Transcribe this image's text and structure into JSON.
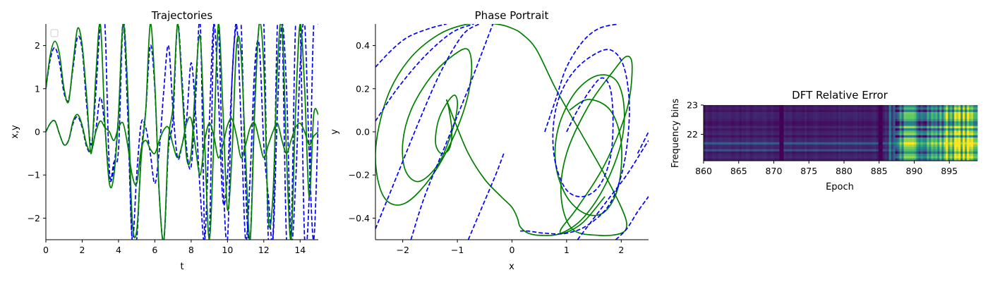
{
  "chart_data": [
    {
      "type": "line",
      "title": "Trajectories",
      "xlabel": "t",
      "ylabel": "x,y",
      "xlim": [
        0,
        15
      ],
      "ylim": [
        -2.5,
        2.5
      ],
      "xticks": [
        "0",
        "2",
        "4",
        "6",
        "8",
        "10",
        "12",
        "14"
      ],
      "yticks": [
        "−2",
        "−1",
        "0",
        "1",
        "2"
      ],
      "grid": false,
      "legend": "top-left (empty)",
      "series": [
        {
          "style": "dashed",
          "color": "#0000ff",
          "x0": 0,
          "t": [
            0,
            0.25,
            0.5,
            0.75,
            1.0,
            1.25,
            1.5,
            1.75,
            2.0,
            2.25,
            2.5,
            2.75,
            3.0,
            3.25,
            3.5,
            3.75,
            4.0,
            4.25,
            4.5,
            4.75,
            5.0,
            5.25,
            5.5,
            5.75,
            6.0,
            6.25,
            6.5,
            6.75,
            7.0,
            7.25,
            7.5,
            7.75,
            8.0,
            8.25,
            8.5,
            8.75,
            9.0,
            9.25,
            9.5,
            9.75,
            10.0,
            10.25,
            10.5,
            10.75,
            11.0,
            11.25,
            11.5,
            11.75,
            12.0,
            12.25,
            12.5,
            12.75,
            13.0,
            13.25,
            13.5,
            13.75,
            14.0,
            14.25,
            14.5,
            14.75,
            15.0
          ],
          "values": [
            1.0,
            1.7,
            1.95,
            1.6,
            0.9,
            0.75,
            1.5,
            2.2,
            1.9,
            0.6,
            -0.3,
            0.9,
            2.5,
            2.5,
            -0.9,
            -0.7,
            -0.4,
            2.5,
            1.0,
            -2.5,
            -2.5,
            -0.5,
            0.5,
            2.0,
            1.0,
            -1.5,
            -2.5,
            -0.4,
            0.3,
            2.5,
            1.2,
            -0.4,
            -0.8,
            0.8,
            2.5,
            -2.5,
            -2.5,
            2.5,
            2.5,
            -1.0,
            -2.5,
            1.2,
            2.5,
            2.5,
            -1.3,
            -2.5,
            0.8,
            2.5,
            2.5,
            -2.5,
            -2.5,
            2.5,
            2.5,
            -2.5,
            -2.5,
            2.5,
            2.5,
            -2.5,
            -1.5,
            2.5,
            2.5
          ]
        },
        {
          "style": "dashed",
          "color": "#0000ff",
          "x0": 0,
          "t": [
            0,
            0.25,
            0.5,
            0.75,
            1.0,
            1.25,
            1.5,
            1.75,
            2.0,
            2.25,
            2.5,
            2.75,
            3.0,
            3.25,
            3.5,
            3.75,
            4.0,
            4.25,
            4.5,
            4.75,
            5.0,
            5.25,
            5.5,
            5.75,
            6.0,
            6.25,
            6.5,
            6.75,
            7.0,
            7.25,
            7.5,
            7.75,
            8.0,
            8.25,
            8.5,
            8.75,
            9.0,
            9.25,
            9.5,
            9.75,
            10.0,
            10.25,
            10.5,
            10.75,
            11.0,
            11.25,
            11.5,
            11.75,
            12.0,
            12.25,
            12.5,
            12.75,
            13.0,
            13.25,
            13.5,
            13.75,
            14.0,
            14.25,
            14.5,
            14.75,
            15.0
          ],
          "values": [
            0.0,
            0.2,
            0.25,
            -0.05,
            -0.3,
            -0.2,
            0.2,
            0.35,
            0.1,
            -0.35,
            -0.45,
            0.05,
            0.8,
            0.1,
            -1.1,
            -0.8,
            0.4,
            2.5,
            0.5,
            -2.5,
            -1.0,
            0.2,
            0.1,
            -0.5,
            -1.2,
            -0.4,
            1.0,
            2.0,
            0.5,
            -0.6,
            -0.3,
            0.3,
            1.6,
            0.4,
            -1.4,
            -2.5,
            0.2,
            2.5,
            0.8,
            -1.6,
            -1.0,
            1.2,
            2.5,
            0.2,
            -2.5,
            -1.0,
            1.5,
            2.0,
            -0.3,
            -1.5,
            -2.5,
            0.5,
            2.5,
            1.0,
            -2.5,
            -1.2,
            1.5,
            2.5,
            -0.5,
            -2.5,
            0.3
          ]
        },
        {
          "style": "solid",
          "color": "#008000",
          "x0": 0,
          "t": [
            0,
            0.25,
            0.5,
            0.75,
            1.0,
            1.25,
            1.5,
            1.75,
            2.0,
            2.25,
            2.5,
            2.75,
            3.0,
            3.25,
            3.5,
            3.75,
            4.0,
            4.25,
            4.5,
            4.75,
            5.0,
            5.25,
            5.5,
            5.75,
            6.0,
            6.25,
            6.5,
            6.75,
            7.0,
            7.25,
            7.5,
            7.75,
            8.0,
            8.25,
            8.5,
            8.75,
            9.0,
            9.25,
            9.5,
            9.75,
            10.0,
            10.25,
            10.5,
            10.75,
            11.0,
            11.25,
            11.5,
            11.75,
            12.0,
            12.25,
            12.5,
            12.75,
            13.0,
            13.25,
            13.5,
            13.75,
            14.0,
            14.25,
            14.5,
            14.75,
            15.0
          ],
          "values": [
            1.0,
            1.8,
            2.1,
            1.8,
            1.0,
            0.7,
            1.6,
            2.4,
            2.0,
            0.8,
            -0.5,
            1.3,
            2.5,
            0.2,
            -1.2,
            -1.0,
            0.4,
            2.5,
            1.0,
            -2.0,
            -2.3,
            -0.6,
            0.5,
            2.5,
            1.1,
            -1.5,
            -2.5,
            -0.2,
            0.6,
            2.5,
            1.0,
            -0.6,
            -0.5,
            1.2,
            2.2,
            -0.3,
            -2.5,
            -0.2,
            2.5,
            0.5,
            -1.8,
            -0.5,
            2.0,
            1.8,
            -0.6,
            -2.5,
            0.5,
            2.5,
            1.5,
            -2.0,
            -1.5,
            1.5,
            2.5,
            -0.5,
            -2.5,
            0.5,
            2.5,
            1.0,
            -1.5,
            0.4,
            0.4
          ]
        },
        {
          "style": "solid",
          "color": "#008000",
          "x0": 0,
          "t": [
            0,
            0.25,
            0.5,
            0.75,
            1.0,
            1.25,
            1.5,
            1.75,
            2.0,
            2.25,
            2.5,
            2.75,
            3.0,
            3.25,
            3.5,
            3.75,
            4.0,
            4.25,
            4.5,
            4.75,
            5.0,
            5.25,
            5.5,
            5.75,
            6.0,
            6.25,
            6.5,
            6.75,
            7.0,
            7.25,
            7.5,
            7.75,
            8.0,
            8.25,
            8.5,
            8.75,
            9.0,
            9.25,
            9.5,
            9.75,
            10.0,
            10.25,
            10.5,
            10.75,
            11.0,
            11.25,
            11.5,
            11.75,
            12.0,
            12.25,
            12.5,
            12.75,
            13.0,
            13.25,
            13.5,
            13.75,
            14.0,
            14.25,
            14.5,
            14.75,
            15.0
          ],
          "values": [
            0.0,
            0.2,
            0.25,
            -0.05,
            -0.3,
            -0.2,
            0.25,
            0.4,
            0.15,
            -0.3,
            -0.45,
            0.0,
            0.25,
            0.1,
            0.0,
            -0.2,
            0.1,
            0.2,
            -0.3,
            -1.0,
            -1.2,
            -0.4,
            -0.2,
            -0.4,
            -0.5,
            -0.2,
            0.05,
            0.1,
            -0.3,
            -0.6,
            -0.3,
            0.2,
            0.3,
            -0.4,
            -1.0,
            -0.2,
            0.2,
            -0.1,
            -0.6,
            -0.3,
            0.15,
            0.3,
            -0.1,
            -0.6,
            -0.3,
            0.1,
            0.2,
            -0.2,
            -0.6,
            -0.3,
            0.0,
            0.2,
            -0.2,
            -0.5,
            -0.2,
            0.1,
            0.2,
            0.0,
            -0.3,
            -0.1,
            0.0
          ]
        }
      ]
    },
    {
      "type": "line",
      "title": "Phase Portrait",
      "xlabel": "x",
      "ylabel": "y",
      "xlim": [
        -2.5,
        2.5
      ],
      "ylim": [
        -0.5,
        0.5
      ],
      "xticks": [
        "−2",
        "−1",
        "0",
        "1",
        "2"
      ],
      "yticks": [
        "−0.4",
        "−0.2",
        "0.0",
        "0.2",
        "0.4"
      ],
      "grid": false,
      "series": [
        {
          "style": "solid",
          "color": "#008000",
          "x": [
            -1.2,
            -1.15,
            -1.1,
            -1.15,
            -1.3,
            -1.4,
            -1.35,
            -1.2,
            -1.05,
            -1.0,
            -1.1,
            -1.35,
            -1.7,
            -1.95,
            -2.0,
            -1.85,
            -1.5,
            -1.1,
            -0.8,
            -0.75,
            -0.95,
            -1.4,
            -1.95,
            -2.35,
            -2.5,
            -2.3,
            -1.9,
            -1.35,
            -0.8,
            -0.3,
            0.0,
            0.2,
            0.45,
            0.8,
            1.25,
            1.7,
            2.0,
            2.1,
            2.0,
            1.6,
            1.1,
            0.9,
            1.0,
            1.4,
            1.85,
            2.1,
            2.2,
            2.1,
            1.7,
            1.2,
            0.9,
            0.95,
            1.3,
            1.7
          ],
          "y": [
            0.15,
            0.1,
            0.0,
            -0.08,
            -0.1,
            -0.05,
            0.05,
            0.13,
            0.17,
            0.12,
            0.0,
            -0.15,
            -0.23,
            -0.18,
            -0.05,
            0.1,
            0.25,
            0.35,
            0.38,
            0.25,
            0.05,
            -0.18,
            -0.33,
            -0.3,
            -0.1,
            0.15,
            0.33,
            0.45,
            0.5,
            0.5,
            0.48,
            0.45,
            0.38,
            0.2,
            0.0,
            -0.2,
            -0.35,
            -0.43,
            -0.47,
            -0.48,
            -0.45,
            -0.3,
            -0.1,
            0.12,
            0.28,
            0.35,
            0.3,
            0.1,
            -0.15,
            -0.35,
            -0.45,
            -0.47,
            -0.42,
            -0.3
          ]
        },
        {
          "style": "solid",
          "color": "#008000",
          "x": [
            -1.2,
            -1.05,
            -0.8,
            -0.5,
            -0.2,
            0.0,
            0.1,
            0.15,
            0.3,
            0.55,
            0.9,
            1.3,
            1.7,
            2.0,
            2.05,
            1.9,
            1.55,
            1.15,
            0.85,
            0.8,
            1.0,
            1.35,
            1.7,
            1.95,
            2.0,
            1.8,
            1.4,
            1.05
          ],
          "y": [
            0.15,
            0.05,
            -0.1,
            -0.22,
            -0.3,
            -0.35,
            -0.4,
            -0.44,
            -0.47,
            -0.48,
            -0.47,
            -0.4,
            -0.25,
            -0.05,
            0.12,
            0.24,
            0.26,
            0.18,
            0.02,
            -0.15,
            -0.3,
            -0.38,
            -0.37,
            -0.25,
            -0.05,
            0.1,
            0.15,
            0.1
          ]
        },
        {
          "style": "dashed",
          "color": "#0000ff",
          "x": [
            1.0,
            1.2,
            1.45,
            1.65,
            1.8,
            1.85,
            1.8,
            1.6,
            1.3,
            1.0,
            0.8,
            0.75,
            0.85,
            1.1,
            1.45,
            1.8,
            2.05,
            2.15,
            2.05,
            1.8,
            1.4,
            1.0,
            0.6,
            0.3,
            0.15
          ],
          "y": [
            0.0,
            0.1,
            0.2,
            0.25,
            0.2,
            0.05,
            -0.12,
            -0.25,
            -0.3,
            -0.27,
            -0.15,
            0.0,
            0.15,
            0.27,
            0.35,
            0.38,
            0.3,
            0.1,
            -0.15,
            -0.33,
            -0.43,
            -0.47,
            -0.47,
            -0.46,
            -0.46
          ]
        },
        {
          "style": "dashed",
          "color": "#0000ff",
          "x": [
            -2.5,
            -2.2,
            -1.9,
            -1.5,
            -1.2
          ],
          "y": [
            0.3,
            0.38,
            0.44,
            0.48,
            0.5
          ]
        },
        {
          "style": "dashed",
          "color": "#0000ff",
          "x": [
            -2.5,
            -2.1,
            -1.6,
            -1.1,
            -0.7
          ],
          "y": [
            0.05,
            0.2,
            0.35,
            0.46,
            0.5
          ]
        },
        {
          "style": "dashed",
          "color": "#0000ff",
          "x": [
            -2.5,
            -2.1,
            -1.7,
            -1.3,
            -0.9,
            -0.6
          ],
          "y": [
            -0.45,
            -0.2,
            0.05,
            0.28,
            0.45,
            0.5
          ]
        },
        {
          "style": "dashed",
          "color": "#0000ff",
          "x": [
            -1.85,
            -1.6,
            -1.2,
            -0.8,
            -0.5,
            -0.35
          ],
          "y": [
            -0.5,
            -0.3,
            -0.05,
            0.2,
            0.4,
            0.5
          ]
        },
        {
          "style": "dashed",
          "color": "#0000ff",
          "x": [
            -0.8,
            -0.55,
            -0.3,
            -0.15
          ],
          "y": [
            -0.5,
            -0.35,
            -0.2,
            -0.1
          ]
        },
        {
          "style": "dashed",
          "color": "#0000ff",
          "x": [
            0.6,
            0.8,
            1.0,
            1.3,
            1.6,
            1.95
          ],
          "y": [
            0.0,
            0.15,
            0.3,
            0.42,
            0.48,
            0.5
          ]
        },
        {
          "style": "dashed",
          "color": "#0000ff",
          "x": [
            2.3,
            2.4,
            2.5
          ],
          "y": [
            -0.1,
            -0.05,
            0.0
          ]
        },
        {
          "style": "dashed",
          "color": "#0000ff",
          "x": [
            1.2,
            1.5,
            1.8,
            2.1,
            2.4,
            2.5
          ],
          "y": [
            -0.5,
            -0.4,
            -0.3,
            -0.2,
            -0.08,
            -0.04
          ]
        },
        {
          "style": "dashed",
          "color": "#0000ff",
          "x": [
            1.9,
            2.1,
            2.3,
            2.5
          ],
          "y": [
            -0.5,
            -0.45,
            -0.37,
            -0.3
          ]
        }
      ]
    },
    {
      "type": "heatmap",
      "title": "DFT Relative Error",
      "xlabel": "Epoch",
      "ylabel": "Frequency bins",
      "xlim": [
        860,
        899
      ],
      "ylim": [
        21.1,
        23.0
      ],
      "xticks": [
        "860",
        "865",
        "870",
        "875",
        "880",
        "885",
        "890",
        "895"
      ],
      "yticks": [
        "22",
        "23"
      ],
      "colormap": "viridis",
      "colormap_stops": [
        "#440154",
        "#3b528b",
        "#21918c",
        "#5ec962",
        "#fde725"
      ]
    }
  ]
}
